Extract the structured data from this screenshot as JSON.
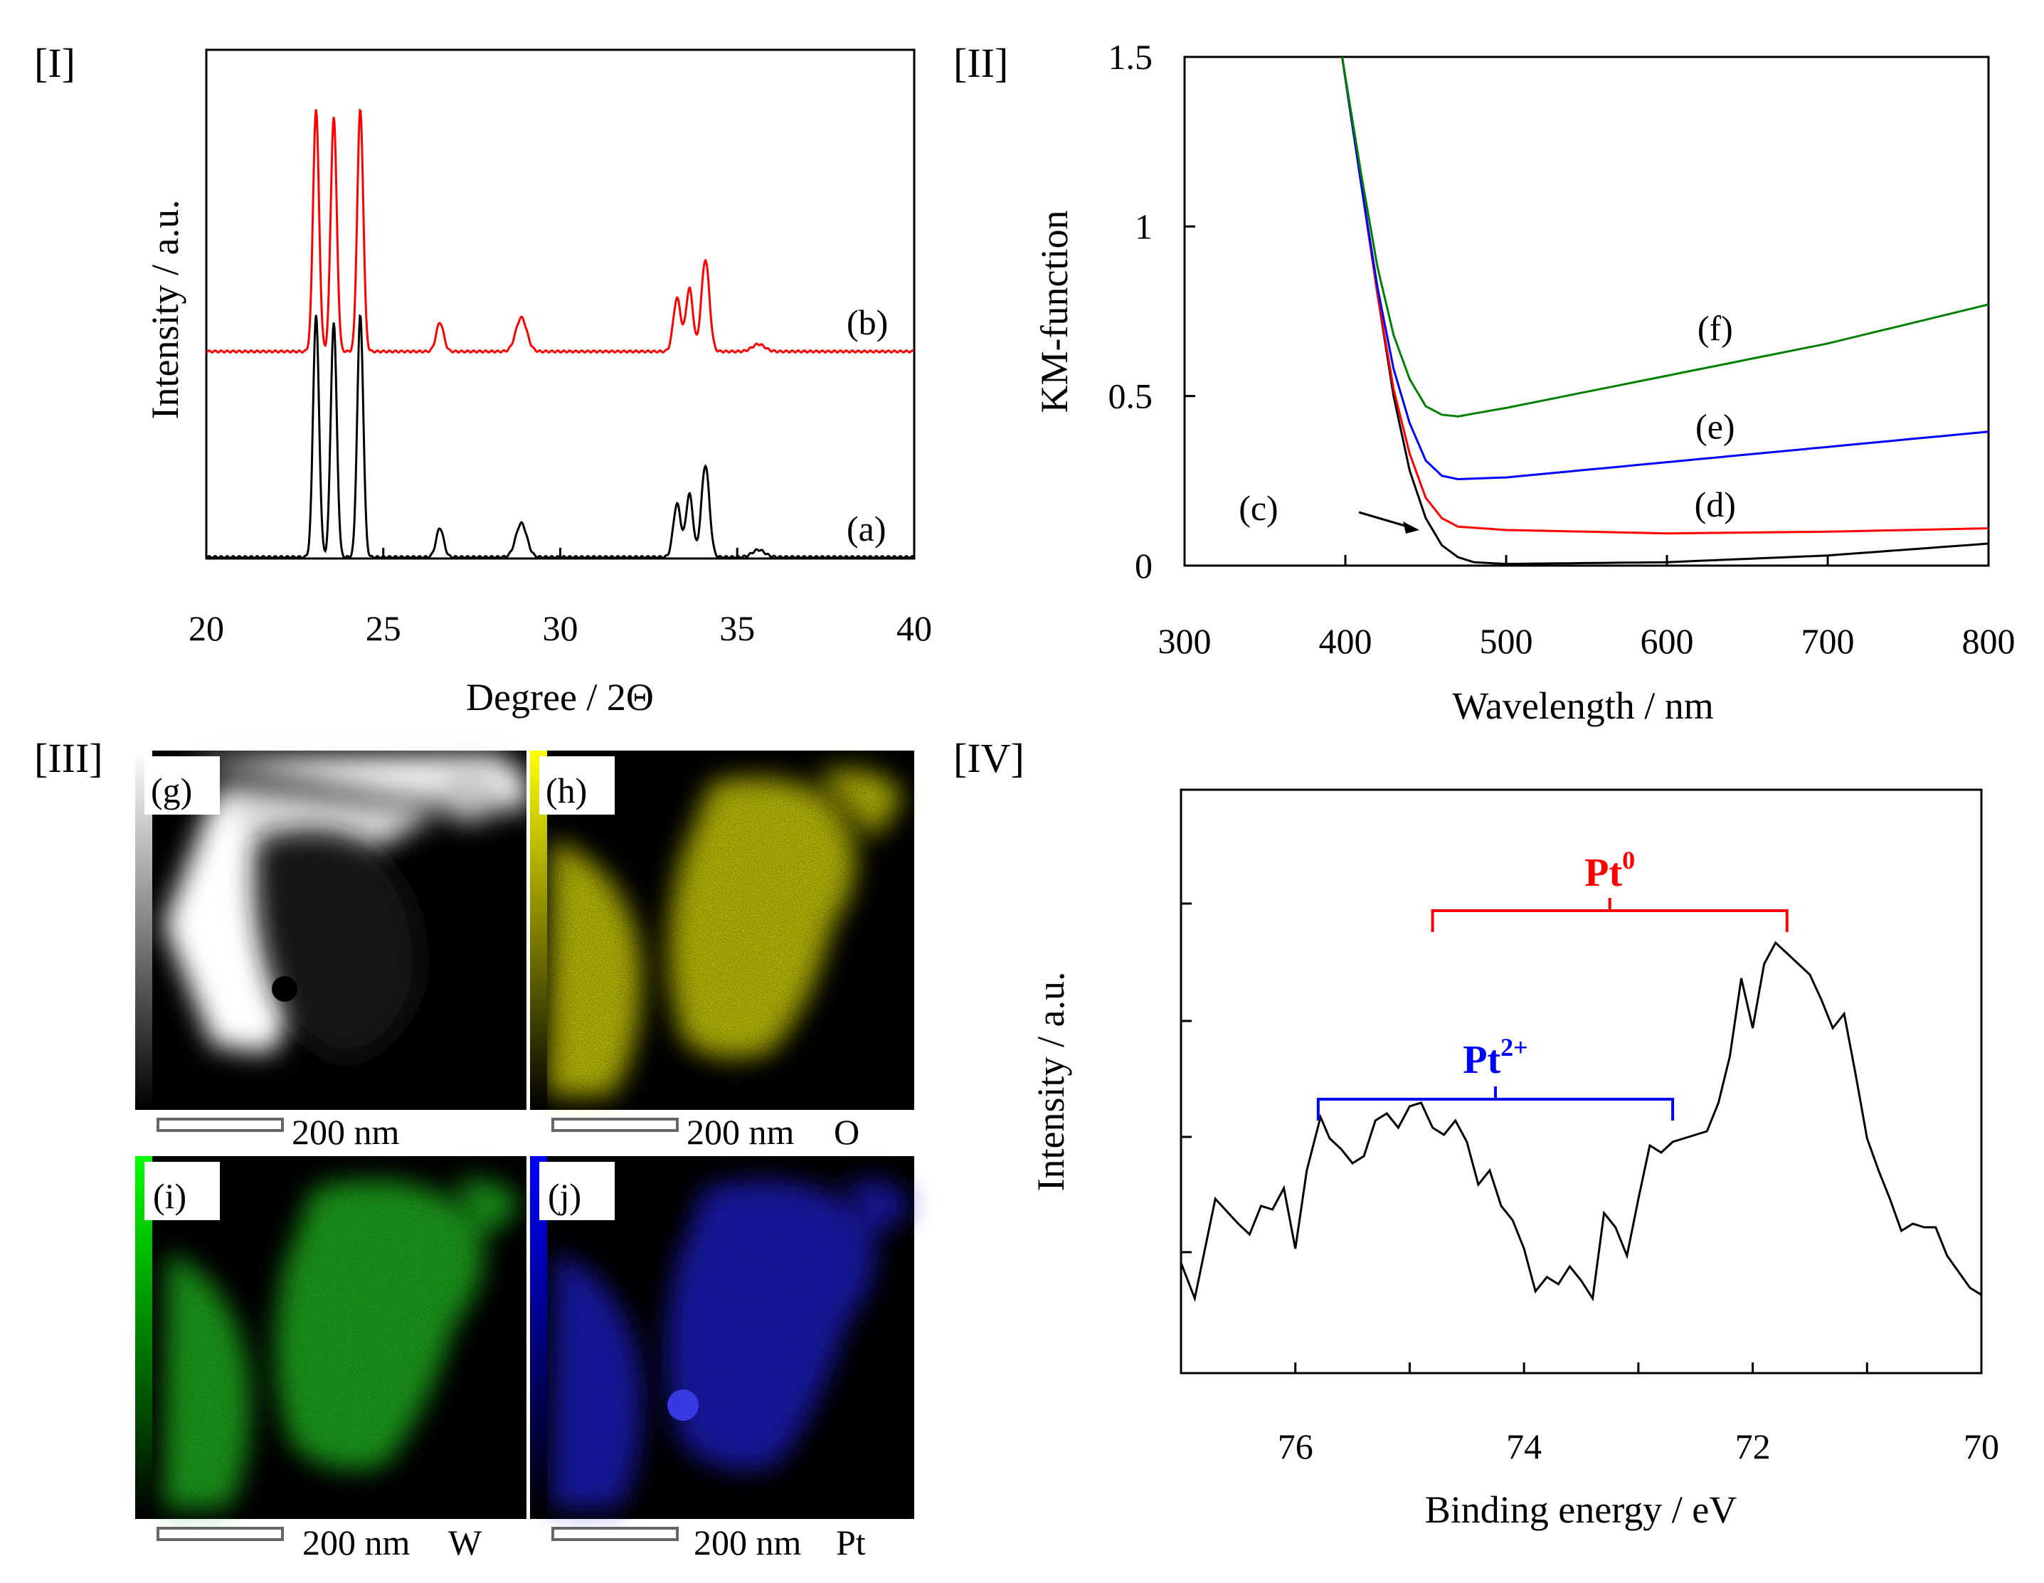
{
  "panels": {
    "I": {
      "label": "[I]",
      "chart_data": {
        "type": "line",
        "xlabel": "Degree / 2Θ",
        "ylabel": "Intensity / a.u.",
        "xlim": [
          20,
          40
        ],
        "x_ticks": [
          "20",
          "25",
          "30",
          "35",
          "40"
        ],
        "peaks": [
          {
            "x": 23.1,
            "h": 1.0,
            "w": 0.12
          },
          {
            "x": 23.6,
            "h": 0.97,
            "w": 0.12
          },
          {
            "x": 24.35,
            "h": 1.0,
            "w": 0.12
          },
          {
            "x": 26.6,
            "h": 0.12,
            "w": 0.15
          },
          {
            "x": 28.9,
            "h": 0.14,
            "w": 0.22
          },
          {
            "x": 33.3,
            "h": 0.22,
            "w": 0.15
          },
          {
            "x": 33.65,
            "h": 0.26,
            "w": 0.14
          },
          {
            "x": 34.1,
            "h": 0.38,
            "w": 0.16
          },
          {
            "x": 35.6,
            "h": 0.03,
            "w": 0.25
          }
        ],
        "series": [
          {
            "name": "(a)",
            "color": "#000000",
            "offset": 0.0
          },
          {
            "name": "(b)",
            "color": "#ff0000",
            "offset": 0.85
          }
        ]
      }
    },
    "II": {
      "label": "[II]",
      "chart_data": {
        "type": "line",
        "xlabel": "Wavelength / nm",
        "ylabel": "KM-function",
        "xlim": [
          300,
          800
        ],
        "ylim": [
          0,
          1.5
        ],
        "x_ticks": [
          "300",
          "400",
          "500",
          "600",
          "700",
          "800"
        ],
        "y_ticks": [
          "0",
          "0.5",
          "1",
          "1.5"
        ],
        "series": [
          {
            "name": "(c)",
            "color": "#000000",
            "points": [
              [
                398,
                1.5
              ],
              [
                410,
                1.12
              ],
              [
                420,
                0.8
              ],
              [
                430,
                0.5
              ],
              [
                440,
                0.28
              ],
              [
                450,
                0.14
              ],
              [
                460,
                0.06
              ],
              [
                470,
                0.025
              ],
              [
                480,
                0.01
              ],
              [
                500,
                0.005
              ],
              [
                600,
                0.01
              ],
              [
                700,
                0.03
              ],
              [
                800,
                0.065
              ]
            ]
          },
          {
            "name": "(d)",
            "color": "#ff0000",
            "points": [
              [
                398,
                1.5
              ],
              [
                410,
                1.12
              ],
              [
                420,
                0.8
              ],
              [
                430,
                0.52
              ],
              [
                440,
                0.33
              ],
              [
                450,
                0.2
              ],
              [
                460,
                0.14
              ],
              [
                470,
                0.115
              ],
              [
                500,
                0.105
              ],
              [
                600,
                0.095
              ],
              [
                700,
                0.1
              ],
              [
                800,
                0.11
              ]
            ]
          },
          {
            "name": "(e)",
            "color": "#0000ff",
            "points": [
              [
                398,
                1.5
              ],
              [
                410,
                1.12
              ],
              [
                420,
                0.82
              ],
              [
                430,
                0.58
              ],
              [
                440,
                0.42
              ],
              [
                450,
                0.31
              ],
              [
                460,
                0.265
              ],
              [
                470,
                0.255
              ],
              [
                500,
                0.26
              ],
              [
                600,
                0.305
              ],
              [
                700,
                0.35
              ],
              [
                800,
                0.395
              ]
            ]
          },
          {
            "name": "(f)",
            "color": "#008000",
            "points": [
              [
                398,
                1.5
              ],
              [
                410,
                1.15
              ],
              [
                420,
                0.88
              ],
              [
                430,
                0.68
              ],
              [
                440,
                0.55
              ],
              [
                450,
                0.47
              ],
              [
                460,
                0.445
              ],
              [
                470,
                0.44
              ],
              [
                500,
                0.465
              ],
              [
                600,
                0.56
              ],
              [
                700,
                0.655
              ],
              [
                800,
                0.77
              ]
            ]
          }
        ],
        "labels": [
          {
            "text": "(f)",
            "x": 630,
            "y": 0.7
          },
          {
            "text": "(e)",
            "x": 630,
            "y": 0.41
          },
          {
            "text": "(d)",
            "x": 630,
            "y": 0.18
          },
          {
            "text": "(c)",
            "x": 346,
            "y": 0.17
          }
        ]
      }
    },
    "III": {
      "label": "[III]",
      "images": [
        {
          "id": "(g)",
          "scale": "200 nm",
          "element": ""
        },
        {
          "id": "(h)",
          "scale": "200 nm",
          "element": "O"
        },
        {
          "id": "(i)",
          "scale": "200 nm",
          "element": "W"
        },
        {
          "id": "(j)",
          "scale": "200 nm",
          "element": "Pt"
        }
      ],
      "colors": {
        "h": "#e6e600",
        "i": "#20c020",
        "j": "#2020e0"
      }
    },
    "IV": {
      "label": "[IV]",
      "chart_data": {
        "type": "line",
        "xlabel": "Binding energy / eV",
        "ylabel": "Intensity / a.u.",
        "xlim": [
          77,
          70
        ],
        "x_ticks": [
          "76",
          "74",
          "72",
          "70"
        ],
        "annotations": [
          {
            "text": "Pt",
            "sup": "0",
            "color": "#ff0000",
            "x1": 74.8,
            "x2": 71.7
          },
          {
            "text": "Pt",
            "sup": "2+",
            "color": "#0000ff",
            "x1": 75.8,
            "x2": 72.7
          }
        ],
        "points": [
          [
            77.0,
            0.22
          ],
          [
            76.88,
            0.12
          ],
          [
            76.7,
            0.4
          ],
          [
            76.5,
            0.33
          ],
          [
            76.4,
            0.3
          ],
          [
            76.3,
            0.38
          ],
          [
            76.2,
            0.37
          ],
          [
            76.1,
            0.43
          ],
          [
            76.0,
            0.26
          ],
          [
            75.9,
            0.48
          ],
          [
            75.78,
            0.63
          ],
          [
            75.7,
            0.57
          ],
          [
            75.6,
            0.54
          ],
          [
            75.5,
            0.5
          ],
          [
            75.4,
            0.52
          ],
          [
            75.3,
            0.62
          ],
          [
            75.2,
            0.64
          ],
          [
            75.1,
            0.6
          ],
          [
            75.0,
            0.66
          ],
          [
            74.9,
            0.67
          ],
          [
            74.8,
            0.6
          ],
          [
            74.7,
            0.58
          ],
          [
            74.6,
            0.62
          ],
          [
            74.5,
            0.56
          ],
          [
            74.4,
            0.44
          ],
          [
            74.3,
            0.48
          ],
          [
            74.2,
            0.38
          ],
          [
            74.1,
            0.34
          ],
          [
            74.0,
            0.26
          ],
          [
            73.9,
            0.14
          ],
          [
            73.8,
            0.18
          ],
          [
            73.7,
            0.16
          ],
          [
            73.6,
            0.21
          ],
          [
            73.5,
            0.17
          ],
          [
            73.4,
            0.12
          ],
          [
            73.3,
            0.36
          ],
          [
            73.2,
            0.32
          ],
          [
            73.1,
            0.24
          ],
          [
            73.0,
            0.4
          ],
          [
            72.9,
            0.55
          ],
          [
            72.8,
            0.53
          ],
          [
            72.7,
            0.56
          ],
          [
            72.6,
            0.57
          ],
          [
            72.5,
            0.58
          ],
          [
            72.4,
            0.59
          ],
          [
            72.3,
            0.67
          ],
          [
            72.2,
            0.8
          ],
          [
            72.1,
            1.02
          ],
          [
            72.0,
            0.88
          ],
          [
            71.9,
            1.06
          ],
          [
            71.8,
            1.12
          ],
          [
            71.7,
            1.09
          ],
          [
            71.6,
            1.06
          ],
          [
            71.5,
            1.03
          ],
          [
            71.4,
            0.96
          ],
          [
            71.3,
            0.88
          ],
          [
            71.2,
            0.92
          ],
          [
            71.1,
            0.75
          ],
          [
            71.0,
            0.57
          ],
          [
            70.9,
            0.48
          ],
          [
            70.8,
            0.4
          ],
          [
            70.7,
            0.31
          ],
          [
            70.6,
            0.33
          ],
          [
            70.5,
            0.32
          ],
          [
            70.4,
            0.32
          ],
          [
            70.3,
            0.24
          ],
          [
            70.1,
            0.15
          ],
          [
            70.0,
            0.13
          ]
        ]
      }
    }
  }
}
